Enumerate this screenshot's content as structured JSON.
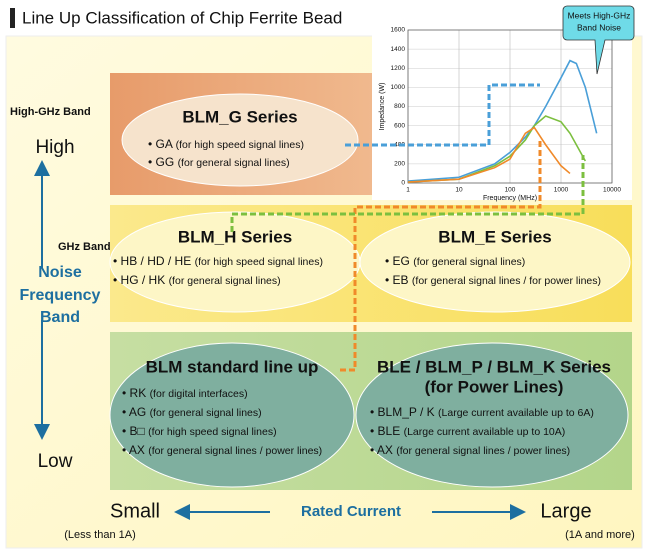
{
  "header": {
    "title": "Line Up Classification of Chip Ferrite Bead"
  },
  "labels": {
    "high_ghz_band": "High-GHz Band",
    "high": "High",
    "ghz_band": "GHz Band",
    "noise_frequency_band": [
      "Noise",
      "Frequency",
      "Band"
    ],
    "low": "Low",
    "small": "Small",
    "large": "Large",
    "rated_current": "Rated Current",
    "small_note": "(Less than 1A)",
    "large_note": "(1A and more)"
  },
  "groups": [
    {
      "title": [
        "BLM_G Series"
      ],
      "items": [
        {
          "code": "GA",
          "note": "(for high speed signal lines)"
        },
        {
          "code": "GG",
          "note": "(for general signal lines)"
        }
      ]
    },
    {
      "title": [
        "BLM_H Series"
      ],
      "items": [
        {
          "code": "HB / HD / HE",
          "note": "(for high speed signal lines)"
        },
        {
          "code": "HG / HK",
          "note": "(for general signal lines)"
        }
      ]
    },
    {
      "title": [
        "BLM_E Series"
      ],
      "items": [
        {
          "code": "EG",
          "note": "(for general signal lines)"
        },
        {
          "code": "EB",
          "note": "(for general signal lines / for power lines)"
        }
      ]
    },
    {
      "title": [
        "BLM standard line up"
      ],
      "items": [
        {
          "code": "RK",
          "note": "(for digital interfaces)"
        },
        {
          "code": "AG",
          "note": "(for general signal lines)"
        },
        {
          "code": "B□",
          "note": "(for high speed signal lines)"
        },
        {
          "code": "AX",
          "note": "(for general signal lines / power lines)"
        }
      ]
    },
    {
      "title": [
        "BLE / BLM_P / BLM_K Series",
        "(for Power Lines)"
      ],
      "items": [
        {
          "code": "BLM_P / K",
          "note": "(Large current available up to 6A)"
        },
        {
          "code": "BLE",
          "note": "(Large current available up to 10A)"
        },
        {
          "code": "AX",
          "note": "(for general signal lines / power lines)"
        }
      ]
    }
  ],
  "inset_chart": {
    "type": "line",
    "xlabel": "Frequency (MHz)",
    "ylabel": "Impedance (W)",
    "log_x": true,
    "grid": true,
    "xlim": [
      1,
      10000
    ],
    "xticks": [
      1,
      10,
      100,
      1000,
      10000
    ],
    "ylim": [
      0,
      1600
    ],
    "yticks": [
      0,
      200,
      400,
      600,
      800,
      1000,
      1200,
      1400,
      1600
    ],
    "x": [
      1,
      10,
      50,
      100,
      200,
      300,
      500,
      1000,
      1500,
      2000,
      3000,
      5000
    ],
    "series": [
      {
        "color": "#4a9fd8",
        "values": [
          20,
          60,
          200,
          320,
          480,
          600,
          800,
          1100,
          1280,
          1250,
          1000,
          520
        ]
      },
      {
        "color": "#7cbf3f",
        "values": [
          10,
          40,
          180,
          280,
          450,
          600,
          700,
          640,
          520,
          400,
          230,
          null
        ]
      },
      {
        "color": "#f08a2a",
        "values": [
          10,
          40,
          160,
          250,
          520,
          580,
          400,
          180,
          100,
          null,
          null,
          null
        ]
      }
    ],
    "callout": [
      "Meets High-GHz",
      "Band Noise"
    ]
  }
}
